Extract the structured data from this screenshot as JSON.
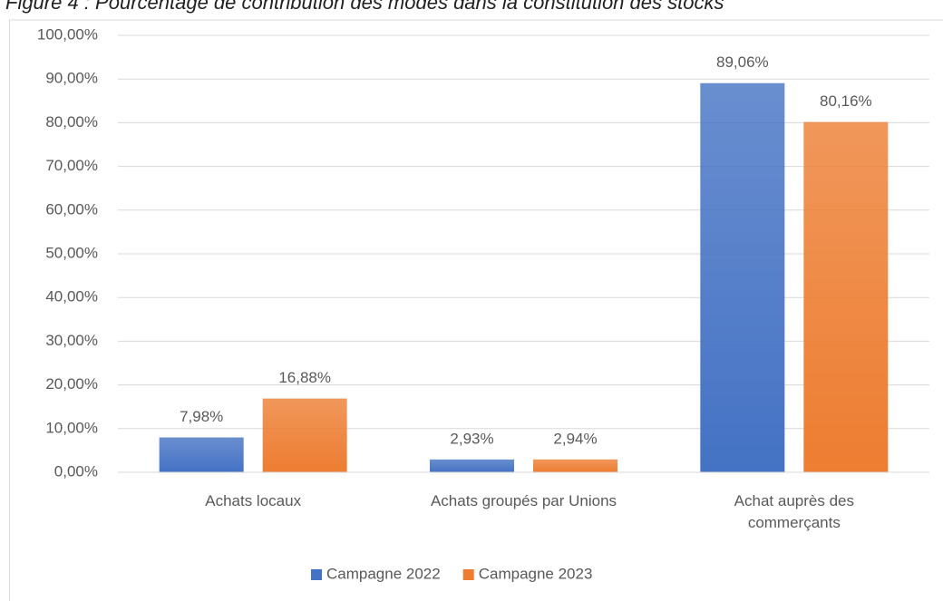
{
  "chart_data": {
    "type": "bar",
    "title": "Figure 4 : Pourcentage de contribution des modes dans la constitution des stocks",
    "categories": [
      "Achats locaux",
      "Achats groupés par Unions",
      "Achat auprès des commerçants"
    ],
    "series": [
      {
        "name": "Campagne 2022",
        "color": "#4472c4",
        "values": [
          7.98,
          2.93,
          89.06
        ],
        "value_labels": [
          "7,98%",
          "2,93%",
          "89,06%"
        ]
      },
      {
        "name": "Campagne 2023",
        "color": "#ed7d31",
        "values": [
          16.88,
          2.94,
          80.16
        ],
        "value_labels": [
          "16,88%",
          "2,94%",
          "80,16%"
        ]
      }
    ],
    "ylim": [
      0,
      100
    ],
    "yticks": [
      {
        "value": 0,
        "label": "0,00%"
      },
      {
        "value": 10,
        "label": "10,00%"
      },
      {
        "value": 20,
        "label": "20,00%"
      },
      {
        "value": 30,
        "label": "30,00%"
      },
      {
        "value": 40,
        "label": "40,00%"
      },
      {
        "value": 50,
        "label": "50,00%"
      },
      {
        "value": 60,
        "label": "60,00%"
      },
      {
        "value": 70,
        "label": "70,00%"
      },
      {
        "value": 80,
        "label": "80,00%"
      },
      {
        "value": 90,
        "label": "90,00%"
      },
      {
        "value": 100,
        "label": "100,00%"
      }
    ],
    "grid": true,
    "legend": "bottom"
  }
}
